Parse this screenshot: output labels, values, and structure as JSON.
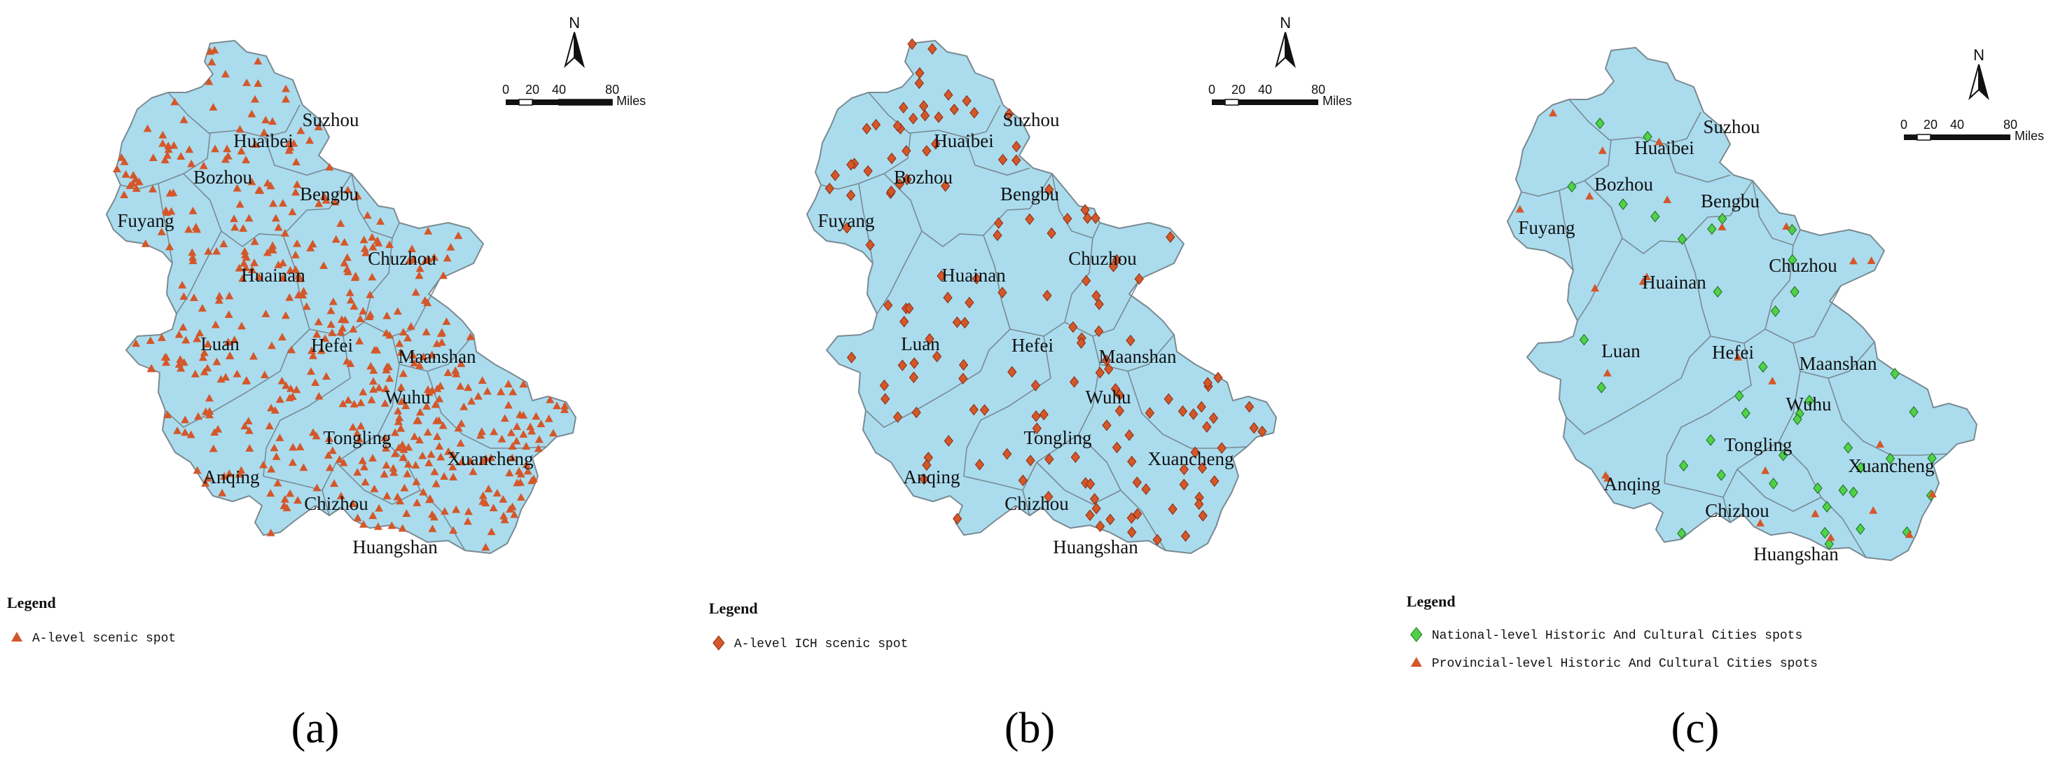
{
  "panels": [
    {
      "id": "a",
      "label": "(a)",
      "legend": {
        "title": "Legend",
        "items": [
          {
            "symbol": "triangle",
            "color": "#d4572a",
            "text": "A-level scenic spot"
          }
        ]
      },
      "north": "N",
      "scale": {
        "ticks": [
          "0",
          "20",
          "40",
          "80"
        ],
        "unit": "Miles"
      },
      "cities": [
        "Suzhou",
        "Huaibei",
        "Bozhou",
        "Bengbu",
        "Fuyang",
        "Chuzhou",
        "Huainan",
        "Luan",
        "Hefei",
        "Maanshan",
        "Wuhu",
        "Tongling",
        "Xuancheng",
        "Anqing",
        "Chizhou",
        "Huangshan"
      ]
    },
    {
      "id": "b",
      "label": "(b)",
      "legend": {
        "title": "Legend",
        "items": [
          {
            "symbol": "diamond",
            "color": "#d4572a",
            "text": "A-level ICH scenic spot"
          }
        ]
      },
      "north": "N",
      "scale": {
        "ticks": [
          "0",
          "20",
          "40",
          "80"
        ],
        "unit": "Miles"
      },
      "cities": [
        "Suzhou",
        "Huaibei",
        "Bozhou",
        "Bengbu",
        "Fuyang",
        "Chuzhou",
        "Huainan",
        "Luan",
        "Hefei",
        "Maanshan",
        "Wuhu",
        "Tongling",
        "Xuancheng",
        "Anqing",
        "Chizhou",
        "Huangshan"
      ]
    },
    {
      "id": "c",
      "label": "(c)",
      "legend": {
        "title": "Legend",
        "items": [
          {
            "symbol": "diamond",
            "color": "#4fd24a",
            "text": "National-level Historic And Cultural Cities spots"
          },
          {
            "symbol": "triangle",
            "color": "#d4572a",
            "text": "Provincial-level Historic And Cultural Cities spots"
          }
        ]
      },
      "north": "N",
      "scale": {
        "ticks": [
          "0",
          "20",
          "40",
          "80"
        ],
        "unit": "Miles"
      },
      "cities": [
        "Suzhou",
        "Huaibei",
        "Bozhou",
        "Bengbu",
        "Fuyang",
        "Chuzhou",
        "Huainan",
        "Luan",
        "Hefei",
        "Maanshan",
        "Wuhu",
        "Tongling",
        "Xuancheng",
        "Anqing",
        "Chizhou",
        "Huangshan"
      ]
    }
  ],
  "colors": {
    "land": "#aadcee",
    "border": "#7a8a92",
    "marker_orange": "#d4572a",
    "marker_green": "#4fd24a"
  }
}
